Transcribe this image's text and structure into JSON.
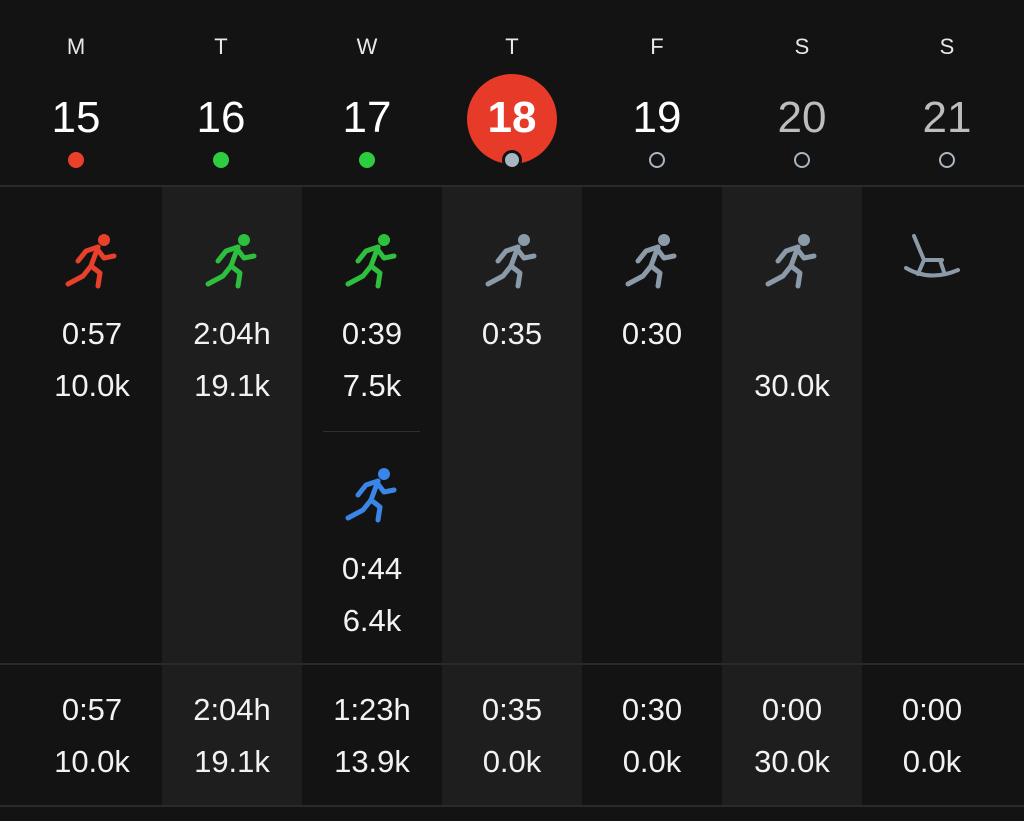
{
  "days": [
    {
      "dow": "M",
      "date": "15",
      "dot": "red"
    },
    {
      "dow": "T",
      "date": "16",
      "dot": "green"
    },
    {
      "dow": "W",
      "date": "17",
      "dot": "green"
    },
    {
      "dow": "T",
      "date": "18",
      "dot": "today"
    },
    {
      "dow": "F",
      "date": "19",
      "dot": "hollow"
    },
    {
      "dow": "S",
      "date": "20",
      "dot": "hollow"
    },
    {
      "dow": "S",
      "date": "21",
      "dot": "hollow"
    }
  ],
  "activities": [
    {
      "icon": "running-icon",
      "color": "#e8402b",
      "time": "0:57",
      "dist": "10.0k"
    },
    {
      "icon": "running-icon",
      "color": "#2fbf3f",
      "time": "2:04h",
      "dist": "19.1k"
    },
    {
      "icon": "running-icon",
      "color": "#2fbf3f",
      "time": "0:39",
      "dist": "7.5k"
    },
    {
      "icon": "running-icon",
      "color": "#3a86e8",
      "time": "0:44",
      "dist": "6.4k"
    },
    {
      "icon": "running-icon",
      "color": "#8b9aa8",
      "time": "0:35",
      "dist": ""
    },
    {
      "icon": "running-icon",
      "color": "#8b9aa8",
      "time": "0:30",
      "dist": ""
    },
    {
      "icon": "running-icon",
      "color": "#8b9aa8",
      "time": "",
      "dist": "30.0k"
    },
    {
      "icon": "rocking-chair-icon",
      "color": "#8b9aa8",
      "time": "",
      "dist": ""
    }
  ],
  "totals": [
    {
      "time": "0:57",
      "dist": "10.0k"
    },
    {
      "time": "2:04h",
      "dist": "19.1k"
    },
    {
      "time": "1:23h",
      "dist": "13.9k"
    },
    {
      "time": "0:35",
      "dist": "0.0k"
    },
    {
      "time": "0:30",
      "dist": "0.0k"
    },
    {
      "time": "0:00",
      "dist": "30.0k"
    },
    {
      "time": "0:00",
      "dist": "0.0k"
    }
  ],
  "colors": {
    "accent": "#e83a28",
    "completed": "#2fbf3f",
    "planned": "#8b9aa8"
  }
}
